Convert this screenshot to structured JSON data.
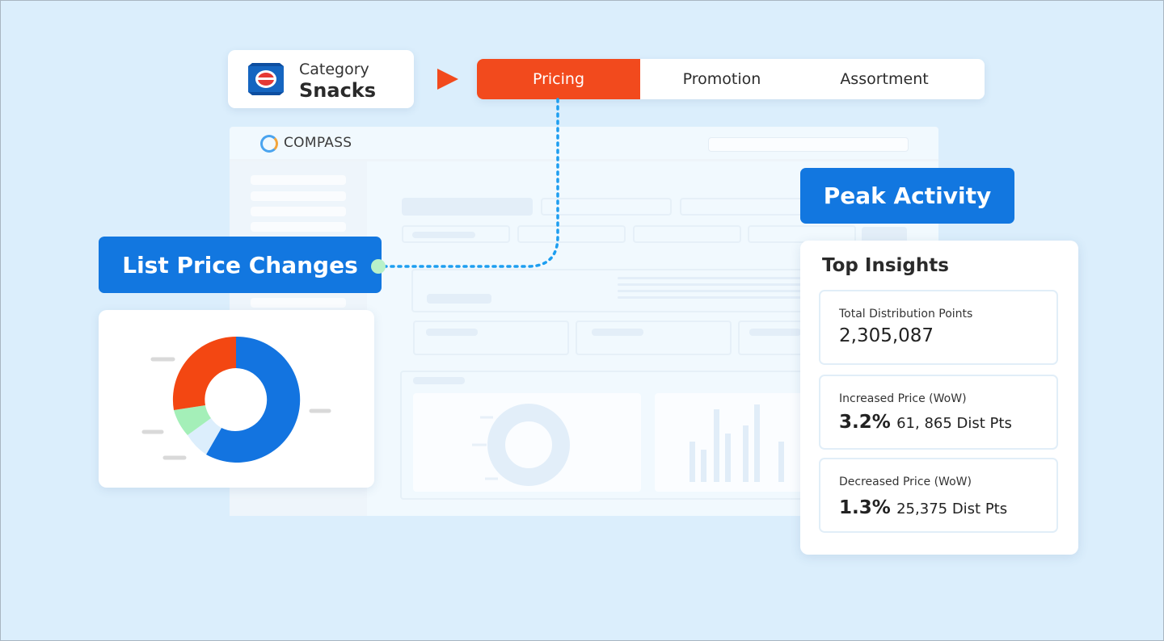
{
  "category": {
    "label": "Category",
    "value": "Snacks",
    "icon": "snack-bag-icon"
  },
  "tabs": [
    {
      "label": "Pricing",
      "active": true
    },
    {
      "label": "Promotion",
      "active": false
    },
    {
      "label": "Assortment",
      "active": false
    }
  ],
  "dashboard": {
    "brand": "COMPASS"
  },
  "callouts": {
    "list_price": "List Price Changes",
    "peak": "Peak Activity"
  },
  "insights": {
    "title": "Top Insights",
    "metrics": [
      {
        "label": "Total Distribution Points",
        "value": "2,305,087"
      },
      {
        "label": "Increased Price (WoW)",
        "value": "3.2%",
        "sub": "61, 865 Dist Pts"
      },
      {
        "label": "Decreased  Price (WoW)",
        "value": "1.3%",
        "sub": "25,375 Dist Pts"
      }
    ]
  },
  "colors": {
    "accent": "#f24a1d",
    "primary": "#1277e0",
    "green": "#b9f1c9",
    "background": "#dbeefc"
  }
}
